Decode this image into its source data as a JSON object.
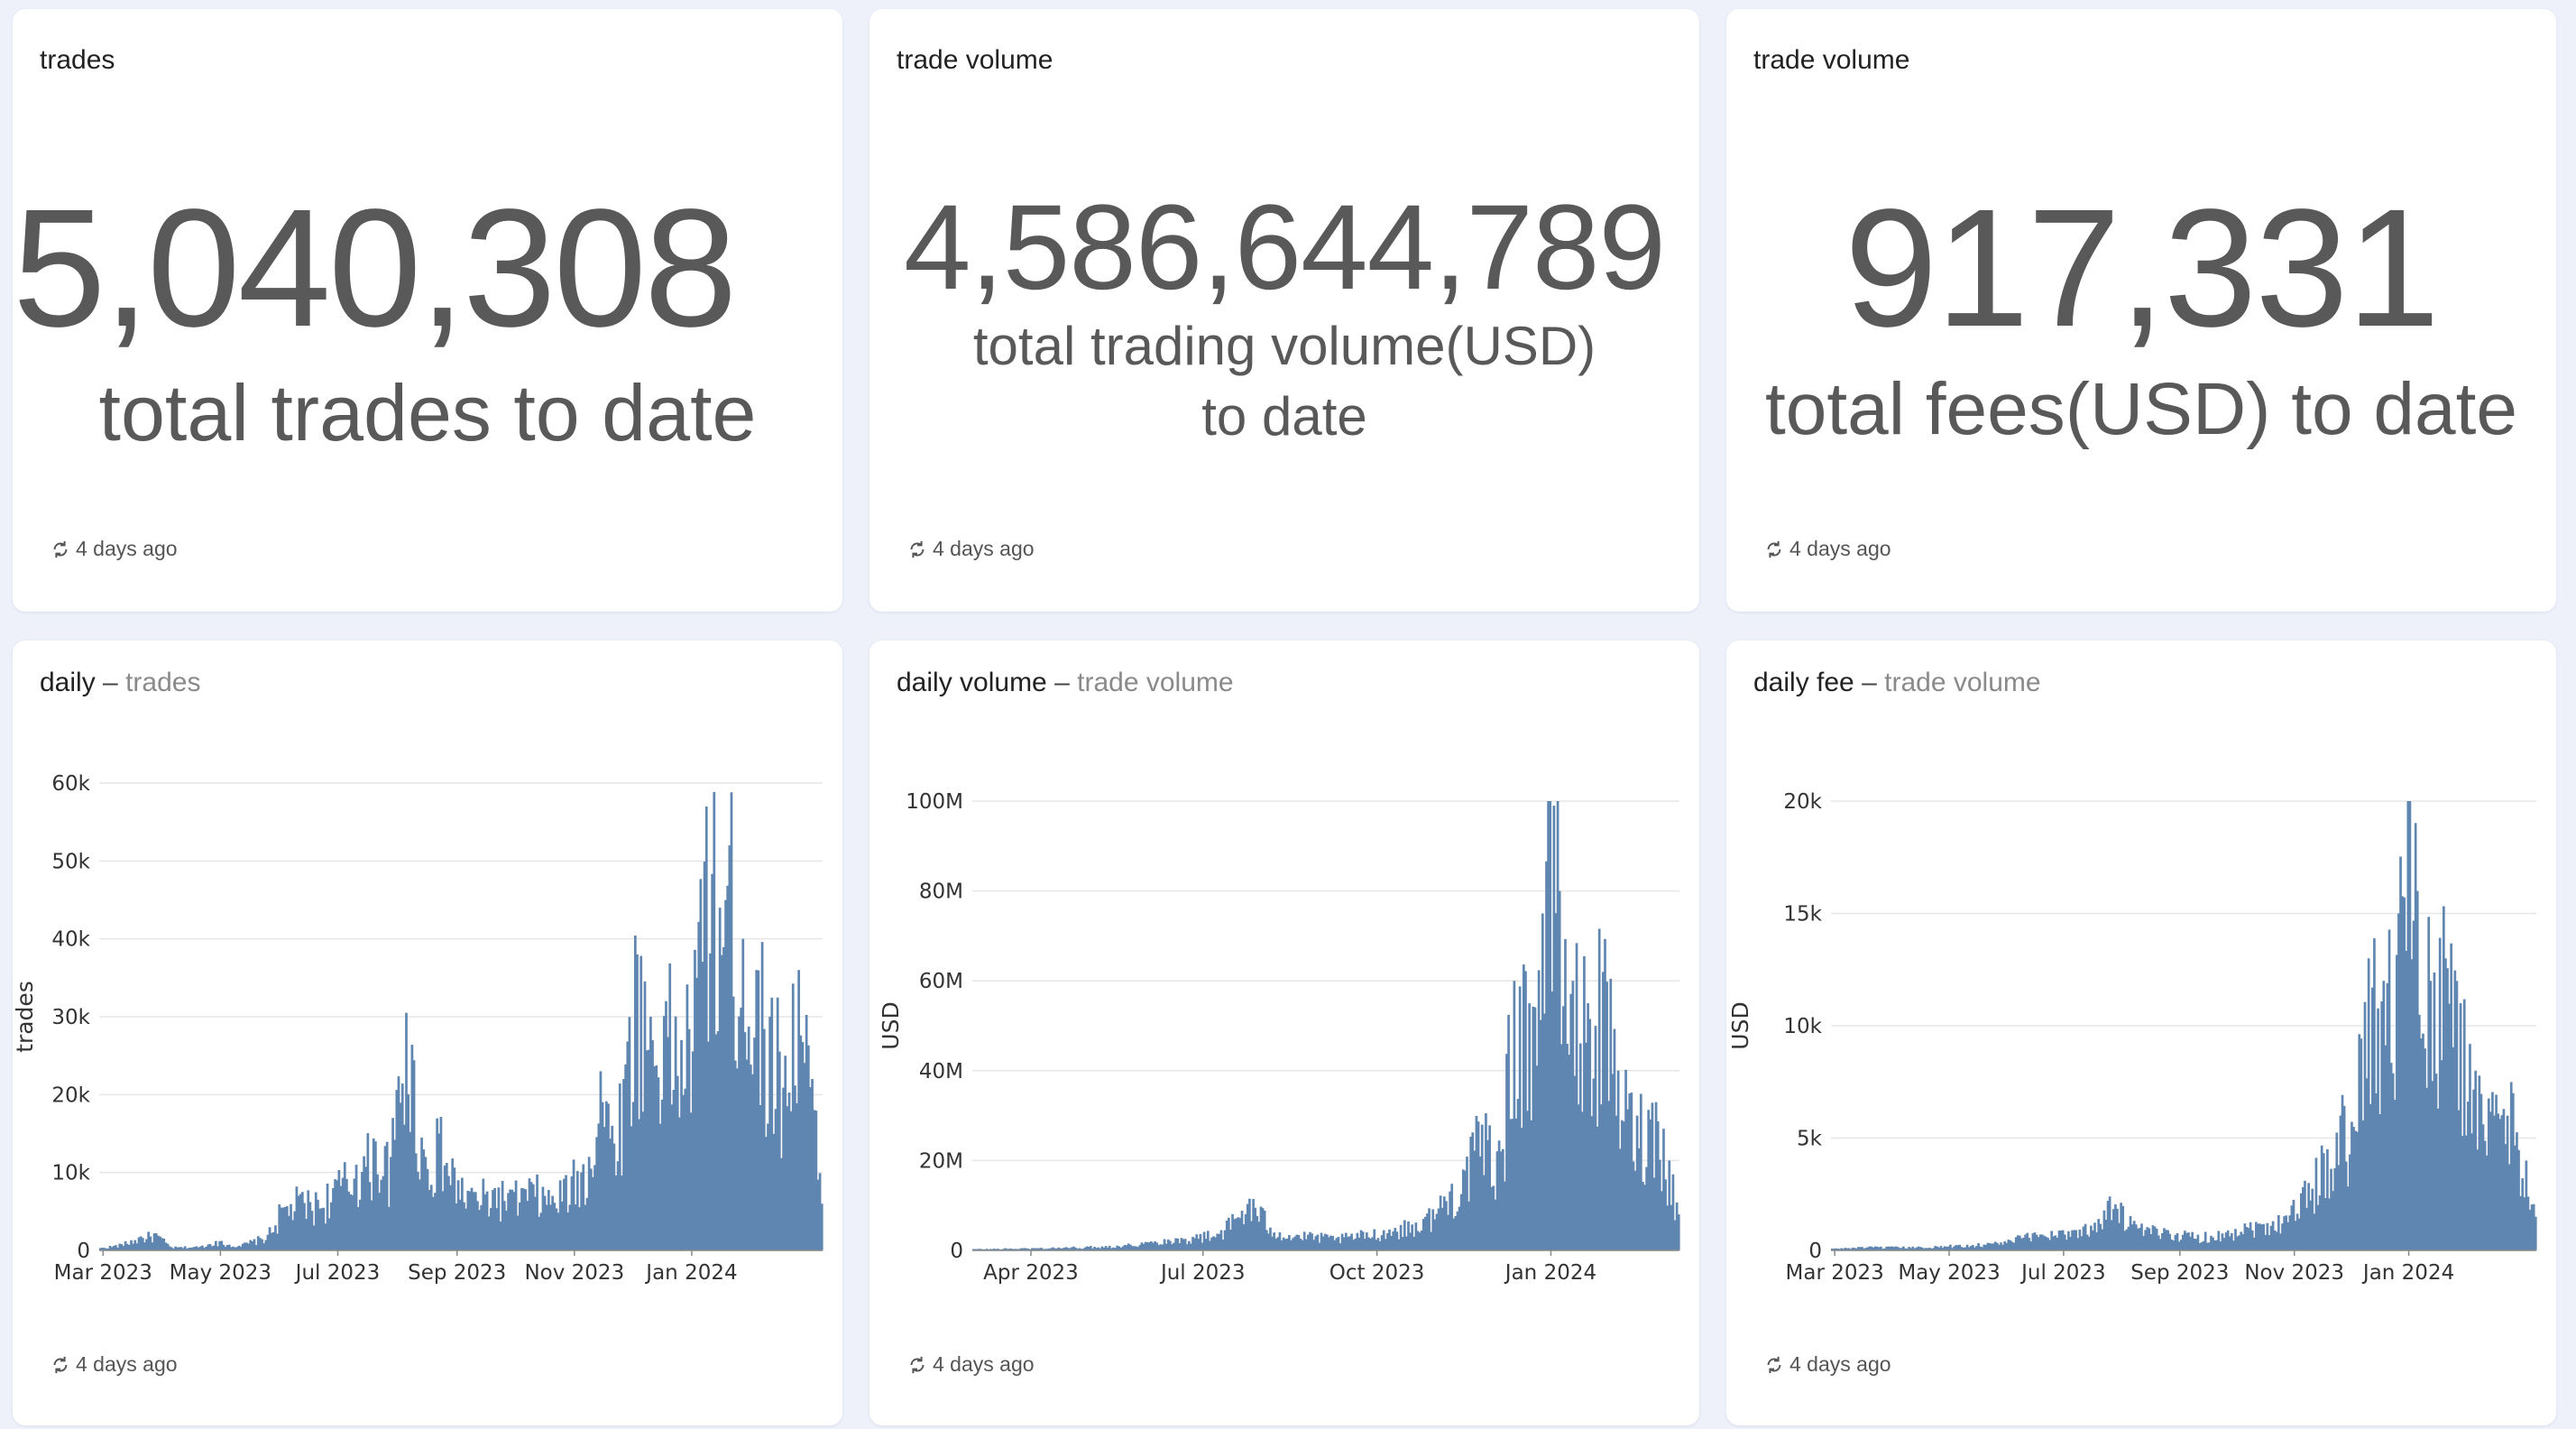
{
  "counters": [
    {
      "title": "trades",
      "value": "5,040,308",
      "label": "total trades to date",
      "footer": "4 days ago",
      "refresh_icon": "refresh-icon"
    },
    {
      "title": "trade volume",
      "value": "4,586,644,789",
      "label": "total trading volume(USD) to date",
      "footer": "4 days ago",
      "refresh_icon": "refresh-icon"
    },
    {
      "title": "trade volume",
      "value": "917,331",
      "label": "total fees(USD) to date",
      "footer": "4 days ago",
      "refresh_icon": "refresh-icon"
    }
  ],
  "charts": [
    {
      "title": "daily",
      "separator": "–",
      "subtitle": "trades",
      "footer": "4 days ago"
    },
    {
      "title": "daily volume",
      "separator": "–",
      "subtitle": "trade volume",
      "footer": "4 days ago"
    },
    {
      "title": "daily fee",
      "separator": "–",
      "subtitle": "trade volume",
      "footer": "4 days ago"
    }
  ],
  "colors": {
    "bar": "#5f86b1",
    "grid": "#e6e6e6",
    "text": "#595959",
    "background": "#eef1fa"
  },
  "chart_data": [
    {
      "type": "bar",
      "ylabel": "trades",
      "xlabel": "",
      "x_start": "2023-02-27",
      "x_end": "2024-03-08",
      "ylim": [
        0,
        60000
      ],
      "y_ticks": [
        0,
        10000,
        20000,
        30000,
        40000,
        50000,
        60000
      ],
      "y_tick_labels": [
        "0",
        "10k",
        "20k",
        "30k",
        "40k",
        "50k",
        "60k"
      ],
      "x_tick_labels": [
        "Mar 2023",
        "May 2023",
        "Jul 2023",
        "Sep 2023",
        "Nov 2023",
        "Jan 2024"
      ],
      "x_tick_dates": [
        "2023-03-01",
        "2023-05-01",
        "2023-07-01",
        "2023-09-01",
        "2023-11-01",
        "2024-01-01"
      ],
      "points": [
        [
          "2023-02-27",
          300
        ],
        [
          "2023-03-10",
          800
        ],
        [
          "2023-03-20",
          1800
        ],
        [
          "2023-03-28",
          2200
        ],
        [
          "2023-04-05",
          400
        ],
        [
          "2023-04-20",
          500
        ],
        [
          "2023-04-28",
          1200
        ],
        [
          "2023-05-10",
          600
        ],
        [
          "2023-05-25",
          2000
        ],
        [
          "2023-06-01",
          5500
        ],
        [
          "2023-06-10",
          7000
        ],
        [
          "2023-06-20",
          6500
        ],
        [
          "2023-06-30",
          9000
        ],
        [
          "2023-07-10",
          11000
        ],
        [
          "2023-07-20",
          14000
        ],
        [
          "2023-07-28",
          12000
        ],
        [
          "2023-08-05",
          30500
        ],
        [
          "2023-08-15",
          12000
        ],
        [
          "2023-08-22",
          15000
        ],
        [
          "2023-09-01",
          9000
        ],
        [
          "2023-09-10",
          7500
        ],
        [
          "2023-09-20",
          8000
        ],
        [
          "2023-09-30",
          7500
        ],
        [
          "2023-10-10",
          8500
        ],
        [
          "2023-10-20",
          7000
        ],
        [
          "2023-10-30",
          9500
        ],
        [
          "2023-11-08",
          12000
        ],
        [
          "2023-11-14",
          23000
        ],
        [
          "2023-11-20",
          16000
        ],
        [
          "2023-11-26",
          22000
        ],
        [
          "2023-12-03",
          38000
        ],
        [
          "2023-12-10",
          30000
        ],
        [
          "2023-12-18",
          32000
        ],
        [
          "2023-12-26",
          27000
        ],
        [
          "2024-01-03",
          35000
        ],
        [
          "2024-01-08",
          57000
        ],
        [
          "2024-01-15",
          44000
        ],
        [
          "2024-01-20",
          52000
        ],
        [
          "2024-01-27",
          40000
        ],
        [
          "2024-02-03",
          36000
        ],
        [
          "2024-02-10",
          30000
        ],
        [
          "2024-02-18",
          25000
        ],
        [
          "2024-02-25",
          36000
        ],
        [
          "2024-03-03",
          22000
        ],
        [
          "2024-03-08",
          6000
        ]
      ]
    },
    {
      "type": "bar",
      "ylabel": "USD",
      "xlabel": "",
      "x_start": "2023-03-01",
      "x_end": "2024-03-08",
      "ylim": [
        0,
        100000000
      ],
      "y_ticks": [
        0,
        20000000,
        40000000,
        60000000,
        80000000,
        100000000
      ],
      "y_tick_labels": [
        "0",
        "20M",
        "40M",
        "60M",
        "80M",
        "100M"
      ],
      "x_tick_labels": [
        "Apr 2023",
        "Jul 2023",
        "Oct 2023",
        "Jan 2024"
      ],
      "x_tick_dates": [
        "2023-04-01",
        "2023-07-01",
        "2023-10-01",
        "2024-01-01"
      ],
      "points": [
        [
          "2023-03-01",
          300000
        ],
        [
          "2023-04-01",
          500000
        ],
        [
          "2023-05-01",
          800000
        ],
        [
          "2023-05-20",
          1200000
        ],
        [
          "2023-06-10",
          2500000
        ],
        [
          "2023-06-25",
          3000000
        ],
        [
          "2023-07-10",
          4500000
        ],
        [
          "2023-07-25",
          11500000
        ],
        [
          "2023-08-10",
          4000000
        ],
        [
          "2023-08-25",
          3500000
        ],
        [
          "2023-09-10",
          3000000
        ],
        [
          "2023-09-25",
          4000000
        ],
        [
          "2023-10-10",
          5000000
        ],
        [
          "2023-10-25",
          7000000
        ],
        [
          "2023-11-05",
          12000000
        ],
        [
          "2023-11-15",
          18000000
        ],
        [
          "2023-11-25",
          28000000
        ],
        [
          "2023-12-05",
          22000000
        ],
        [
          "2023-12-12",
          60000000
        ],
        [
          "2023-12-20",
          55000000
        ],
        [
          "2023-12-27",
          75000000
        ],
        [
          "2024-01-02",
          99000000
        ],
        [
          "2024-01-05",
          80000000
        ],
        [
          "2024-01-12",
          60000000
        ],
        [
          "2024-01-20",
          55000000
        ],
        [
          "2024-01-28",
          62000000
        ],
        [
          "2024-02-05",
          40000000
        ],
        [
          "2024-02-15",
          30000000
        ],
        [
          "2024-02-25",
          33000000
        ],
        [
          "2024-03-03",
          20000000
        ],
        [
          "2024-03-08",
          8000000
        ]
      ]
    },
    {
      "type": "bar",
      "ylabel": "USD",
      "xlabel": "",
      "x_start": "2023-02-27",
      "x_end": "2024-03-08",
      "ylim": [
        0,
        20000
      ],
      "y_ticks": [
        0,
        5000,
        10000,
        15000,
        20000
      ],
      "y_tick_labels": [
        "0",
        "5k",
        "10k",
        "15k",
        "20k"
      ],
      "x_tick_labels": [
        "Mar 2023",
        "May 2023",
        "Jul 2023",
        "Sep 2023",
        "Nov 2023",
        "Jan 2024"
      ],
      "x_tick_dates": [
        "2023-03-01",
        "2023-05-01",
        "2023-07-01",
        "2023-09-01",
        "2023-11-01",
        "2024-01-01"
      ],
      "points": [
        [
          "2023-02-27",
          80
        ],
        [
          "2023-03-15",
          150
        ],
        [
          "2023-04-15",
          150
        ],
        [
          "2023-05-10",
          250
        ],
        [
          "2023-05-30",
          400
        ],
        [
          "2023-06-15",
          800
        ],
        [
          "2023-06-30",
          900
        ],
        [
          "2023-07-15",
          1100
        ],
        [
          "2023-07-25",
          2400
        ],
        [
          "2023-08-10",
          1000
        ],
        [
          "2023-08-25",
          900
        ],
        [
          "2023-09-10",
          700
        ],
        [
          "2023-09-25",
          800
        ],
        [
          "2023-10-05",
          1200
        ],
        [
          "2023-10-20",
          1300
        ],
        [
          "2023-10-30",
          2000
        ],
        [
          "2023-11-08",
          3000
        ],
        [
          "2023-11-18",
          4500
        ],
        [
          "2023-11-25",
          6000
        ],
        [
          "2023-12-02",
          5500
        ],
        [
          "2023-12-10",
          13000
        ],
        [
          "2023-12-18",
          12000
        ],
        [
          "2023-12-26",
          15000
        ],
        [
          "2024-01-01",
          20000
        ],
        [
          "2024-01-05",
          16000
        ],
        [
          "2024-01-12",
          12000
        ],
        [
          "2024-01-20",
          13000
        ],
        [
          "2024-01-28",
          11000
        ],
        [
          "2024-02-05",
          8000
        ],
        [
          "2024-02-15",
          6000
        ],
        [
          "2024-02-25",
          7000
        ],
        [
          "2024-03-03",
          4000
        ],
        [
          "2024-03-08",
          1500
        ]
      ]
    }
  ]
}
